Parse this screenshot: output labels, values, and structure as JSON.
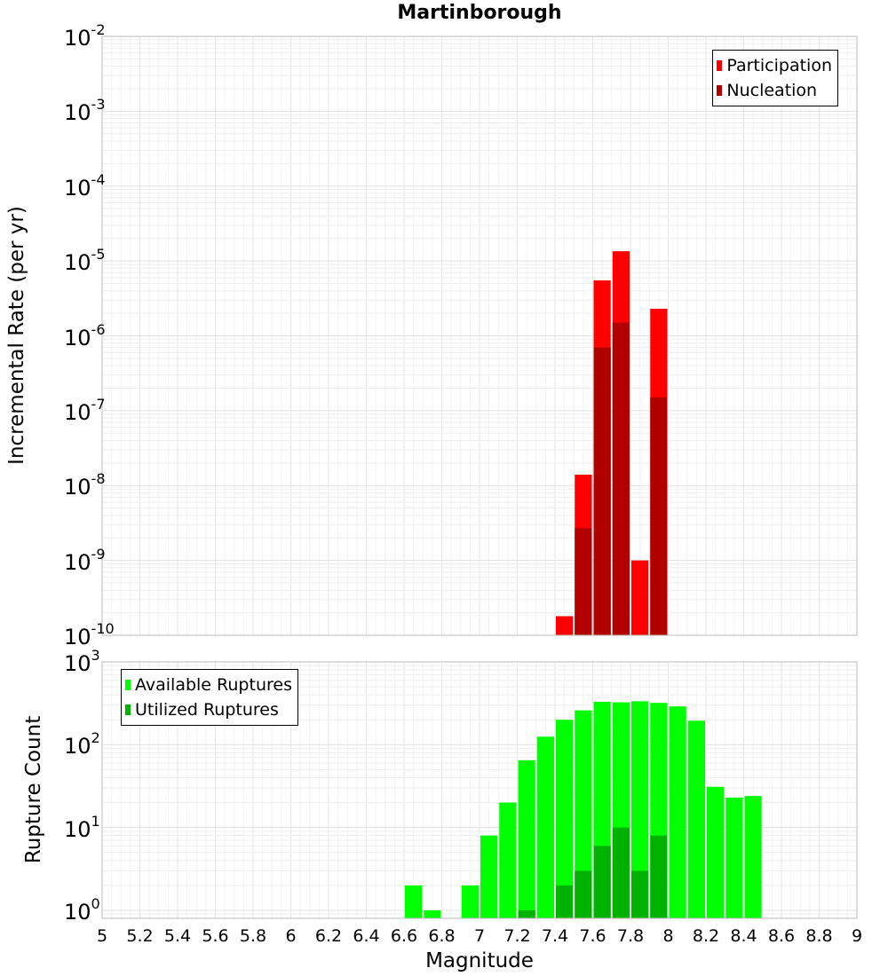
{
  "chart_data": [
    {
      "type": "bar",
      "title": "Martinborough",
      "ylabel": "Incremental Rate (per yr)",
      "xlim": [
        5,
        9
      ],
      "ylim": [
        1e-10,
        0.01
      ],
      "yscale": "log",
      "grid": true,
      "legend_position": "top-right",
      "bin_width": 0.1,
      "series": [
        {
          "name": "Participation",
          "color": "#ff0000",
          "x": [
            7.45,
            7.55,
            7.65,
            7.75,
            7.85,
            7.95
          ],
          "values": [
            1.8e-10,
            1.4e-08,
            5.5e-06,
            1.35e-05,
            1e-09,
            2.3e-06
          ]
        },
        {
          "name": "Nucleation",
          "color": "#b20000",
          "x": [
            7.55,
            7.65,
            7.75,
            7.95
          ],
          "values": [
            2.7e-09,
            7e-07,
            1.5e-06,
            1.5e-07
          ]
        }
      ],
      "y_tick_labels": [
        {
          "base": "10",
          "exp": "-2"
        },
        {
          "base": "10",
          "exp": "-3"
        },
        {
          "base": "10",
          "exp": "-4"
        },
        {
          "base": "10",
          "exp": "-5"
        },
        {
          "base": "10",
          "exp": "-6"
        },
        {
          "base": "10",
          "exp": "-7"
        },
        {
          "base": "10",
          "exp": "-8"
        },
        {
          "base": "10",
          "exp": "-9"
        },
        {
          "base": "10",
          "exp": "-10"
        }
      ]
    },
    {
      "type": "bar",
      "ylabel": "Rupture Count",
      "xlabel": "Magnitude",
      "xlim": [
        5,
        9
      ],
      "ylim": [
        0.8,
        1000
      ],
      "yscale": "log",
      "grid": true,
      "legend_position": "top-left",
      "bin_width": 0.1,
      "series": [
        {
          "name": "Available Ruptures",
          "color": "#00ff00",
          "x": [
            6.65,
            6.75,
            6.95,
            7.05,
            7.15,
            7.25,
            7.35,
            7.45,
            7.55,
            7.65,
            7.75,
            7.85,
            7.95,
            8.05,
            8.15,
            8.25,
            8.35,
            8.45
          ],
          "values": [
            2,
            1,
            2,
            8,
            20,
            65,
            125,
            200,
            260,
            330,
            325,
            335,
            320,
            290,
            195,
            31,
            23,
            24
          ]
        },
        {
          "name": "Utilized Ruptures",
          "color": "#00b200",
          "x": [
            7.25,
            7.45,
            7.55,
            7.65,
            7.75,
            7.85,
            7.95
          ],
          "values": [
            1,
            2,
            3,
            6,
            10,
            3,
            8
          ]
        }
      ],
      "y_tick_labels": [
        {
          "base": "10",
          "exp": "3"
        },
        {
          "base": "10",
          "exp": "2"
        },
        {
          "base": "10",
          "exp": "1"
        },
        {
          "base": "10",
          "exp": "0"
        }
      ],
      "x_tick_labels": [
        "5",
        "5.2",
        "5.4",
        "5.6",
        "5.8",
        "6",
        "6.2",
        "6.4",
        "6.6",
        "6.8",
        "7",
        "7.2",
        "7.4",
        "7.6",
        "7.8",
        "8",
        "8.2",
        "8.4",
        "8.6",
        "8.8",
        "9"
      ]
    }
  ]
}
